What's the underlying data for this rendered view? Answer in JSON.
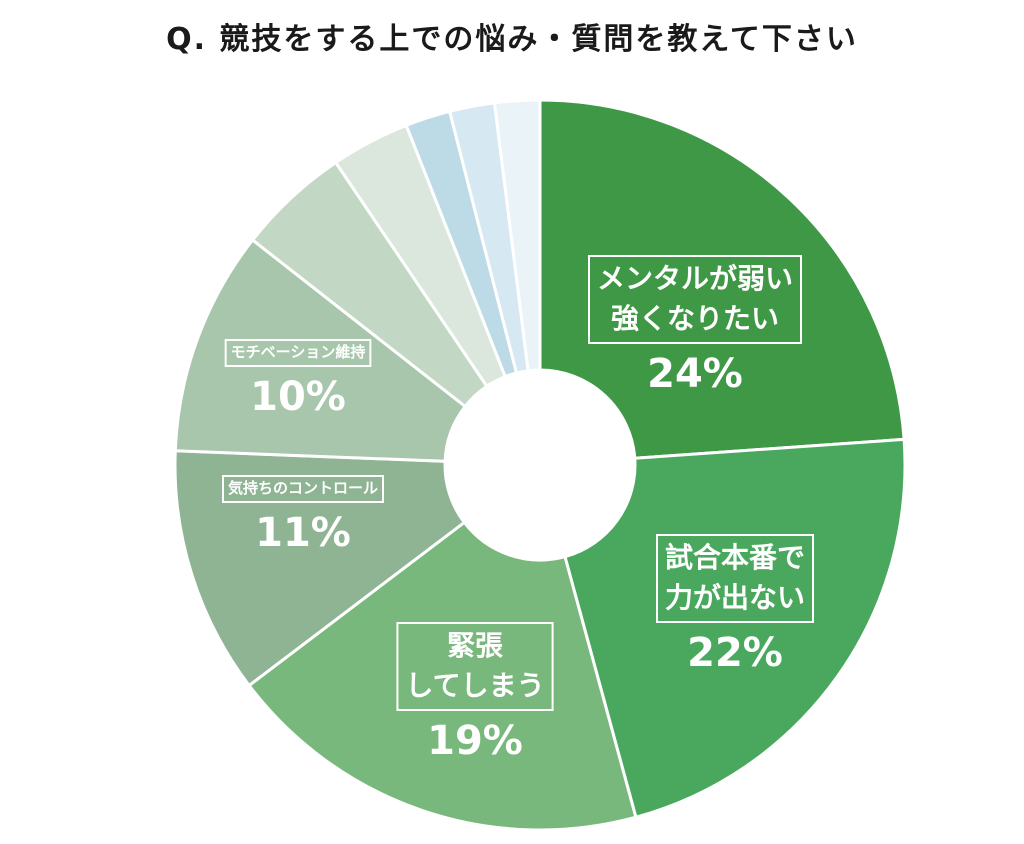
{
  "title": "Q. 競技をする上での悩み・質問を教えて下さい",
  "chart_data": {
    "type": "pie",
    "donut": true,
    "title": "Q. 競技をする上での悩み・質問を教えて下さい",
    "slices": [
      {
        "lines": [
          "メンタルが弱い",
          "強くなりたい"
        ],
        "value": 24,
        "display": "24%",
        "color": "#3f9846"
      },
      {
        "lines": [
          "試合本番で",
          "力が出ない"
        ],
        "value": 22,
        "display": "22%",
        "color": "#4aa85e"
      },
      {
        "lines": [
          "緊張",
          "してしまう"
        ],
        "value": 19,
        "display": "19%",
        "color": "#79b87c"
      },
      {
        "lines": [
          "気持ちのコントロール"
        ],
        "value": 11,
        "display": "11%",
        "color": "#8fb494"
      },
      {
        "lines": [
          "モチベーション維持"
        ],
        "value": 10,
        "display": "10%",
        "color": "#a7c6ab"
      },
      {
        "lines": [],
        "value": 5,
        "display": "",
        "color": "#c3d7c5"
      },
      {
        "lines": [],
        "value": 3.5,
        "display": "",
        "color": "#dbe7dc"
      },
      {
        "lines": [],
        "value": 2,
        "display": "",
        "color": "#bcdbe6"
      },
      {
        "lines": [],
        "value": 2,
        "display": "",
        "color": "#d6e8f1"
      },
      {
        "lines": [],
        "value": 2,
        "display": "",
        "color": "#e9f3f8"
      }
    ]
  }
}
